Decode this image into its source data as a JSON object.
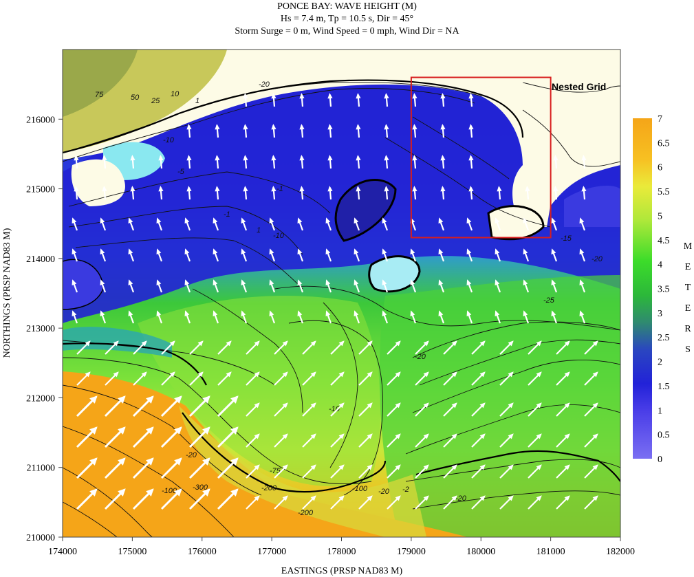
{
  "title": {
    "line1": "PONCE BAY: WAVE HEIGHT (M)",
    "line2": "Hs = 7.4 m, Tp = 10.5 s, Dir = 45°",
    "line3": "Storm Surge = 0 m, Wind Speed = 0 mph, Wind Dir = NA"
  },
  "axes": {
    "xlabel": "EASTINGS (PRSP NAD83 M)",
    "ylabel": "NORTHINGS (PRSP NAD83 M)",
    "x_ticks": [
      "174000",
      "175000",
      "176000",
      "177000",
      "178000",
      "179000",
      "180000",
      "181000",
      "182000"
    ],
    "y_ticks": [
      "210000",
      "211000",
      "212000",
      "213000",
      "214000",
      "215000",
      "216000"
    ],
    "xlim": [
      174000,
      182000
    ],
    "ylim": [
      210000,
      217000
    ]
  },
  "colorbar": {
    "ticks": [
      "7",
      "6.5",
      "6",
      "5.5",
      "5",
      "4.5",
      "4",
      "3.5",
      "3",
      "2.5",
      "2",
      "1.5",
      "1",
      "0.5",
      "0"
    ],
    "label_letters": [
      "M",
      "E",
      "T",
      "E",
      "R",
      "S"
    ],
    "range": [
      0,
      7
    ]
  },
  "nested_grid": {
    "label": "Nested Grid",
    "color": "#d81e1e",
    "x_range": [
      179000,
      181000
    ],
    "y_range": [
      214300,
      216600
    ]
  },
  "contour_labels": [
    "75",
    "50",
    "25",
    "10",
    "1",
    "-20",
    "-10",
    "-5",
    "-1",
    "1",
    "-10",
    "-1",
    "-15",
    "-20",
    "-25",
    "-20",
    "-10",
    "-20",
    "-100",
    "-300",
    "-200",
    "-75",
    "-20",
    "-100",
    "-200",
    "-2",
    "-20"
  ],
  "colors": {
    "deep_blue": "#2a2ad8",
    "green": "#3fcf2a",
    "orange": "#f5a518",
    "land": "#fdfbe6"
  }
}
